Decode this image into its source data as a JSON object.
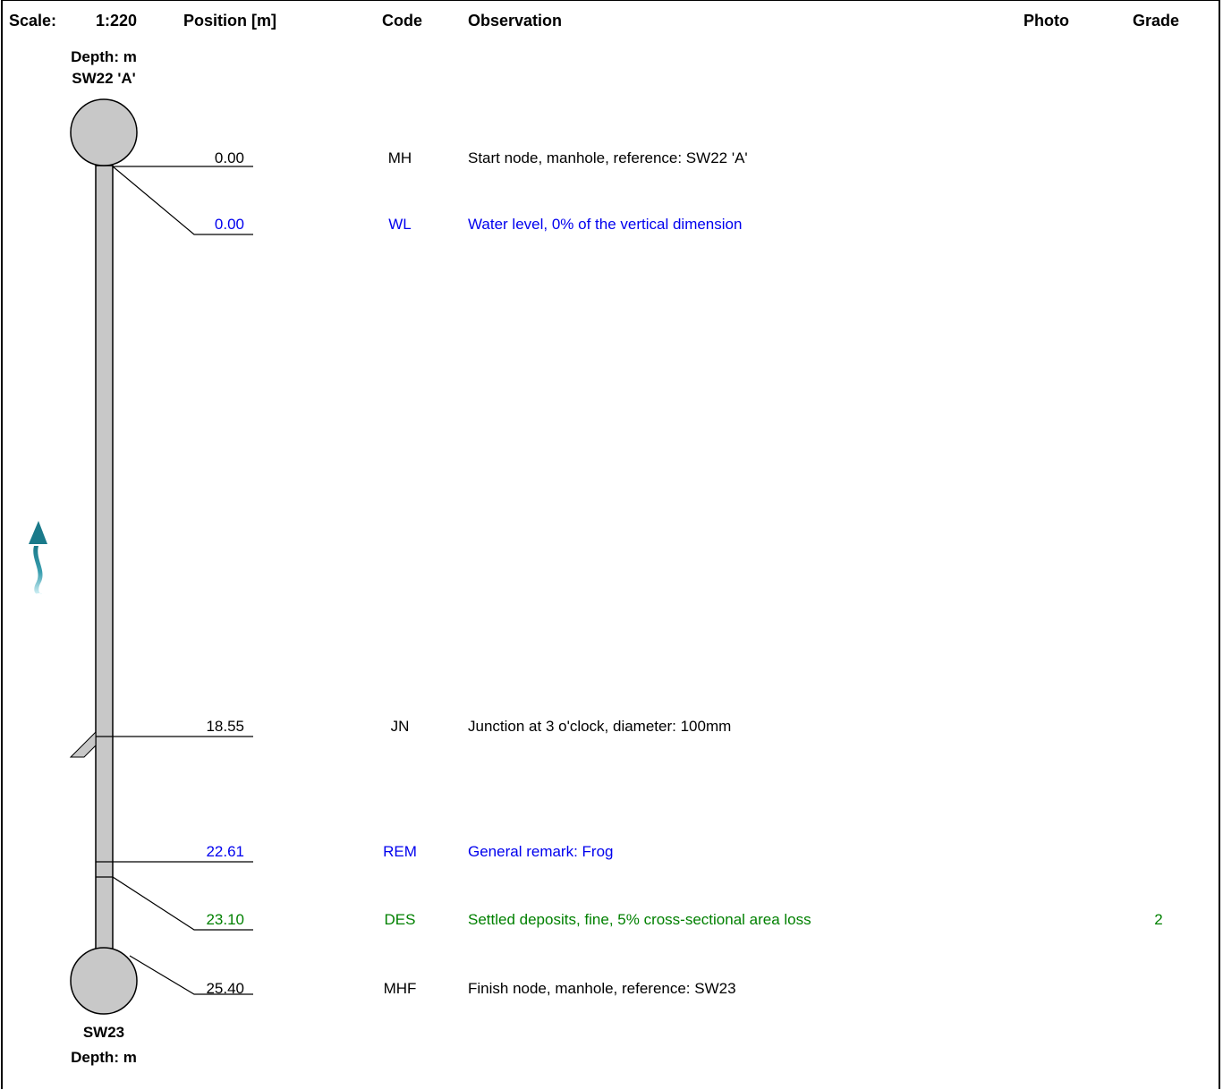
{
  "header": {
    "scale_label": "Scale:",
    "scale_value": "1:220",
    "position_label": "Position [m]",
    "code_label": "Code",
    "observation_label": "Observation",
    "photo_label": "Photo",
    "grade_label": "Grade"
  },
  "start_node": {
    "depth_label": "Depth: m",
    "name": "SW22 'A'"
  },
  "finish_node": {
    "name": "SW23",
    "depth_label": "Depth: m"
  },
  "colors": {
    "black": "#000000",
    "blue": "#0000ee",
    "green": "#008000",
    "pipe": "#c8c8c8",
    "flow_arrow": "#1a7a8a"
  },
  "flow_direction": "up",
  "observations": [
    {
      "position": "0.00",
      "code": "MH",
      "text": "Start node, manhole, reference: SW22 'A'",
      "grade": "",
      "color": "black"
    },
    {
      "position": "0.00",
      "code": "WL",
      "text": "Water level, 0% of the vertical dimension",
      "grade": "",
      "color": "blue"
    },
    {
      "position": "18.55",
      "code": "JN",
      "text": "Junction at 3 o'clock, diameter: 100mm",
      "grade": "",
      "color": "black"
    },
    {
      "position": "22.61",
      "code": "REM",
      "text": "General remark: Frog",
      "grade": "",
      "color": "blue"
    },
    {
      "position": "23.10",
      "code": "DES",
      "text": "Settled deposits, fine, 5% cross-sectional area loss",
      "grade": "2",
      "color": "green"
    },
    {
      "position": "25.40",
      "code": "MHF",
      "text": "Finish node, manhole, reference: SW23",
      "grade": "",
      "color": "black"
    }
  ]
}
